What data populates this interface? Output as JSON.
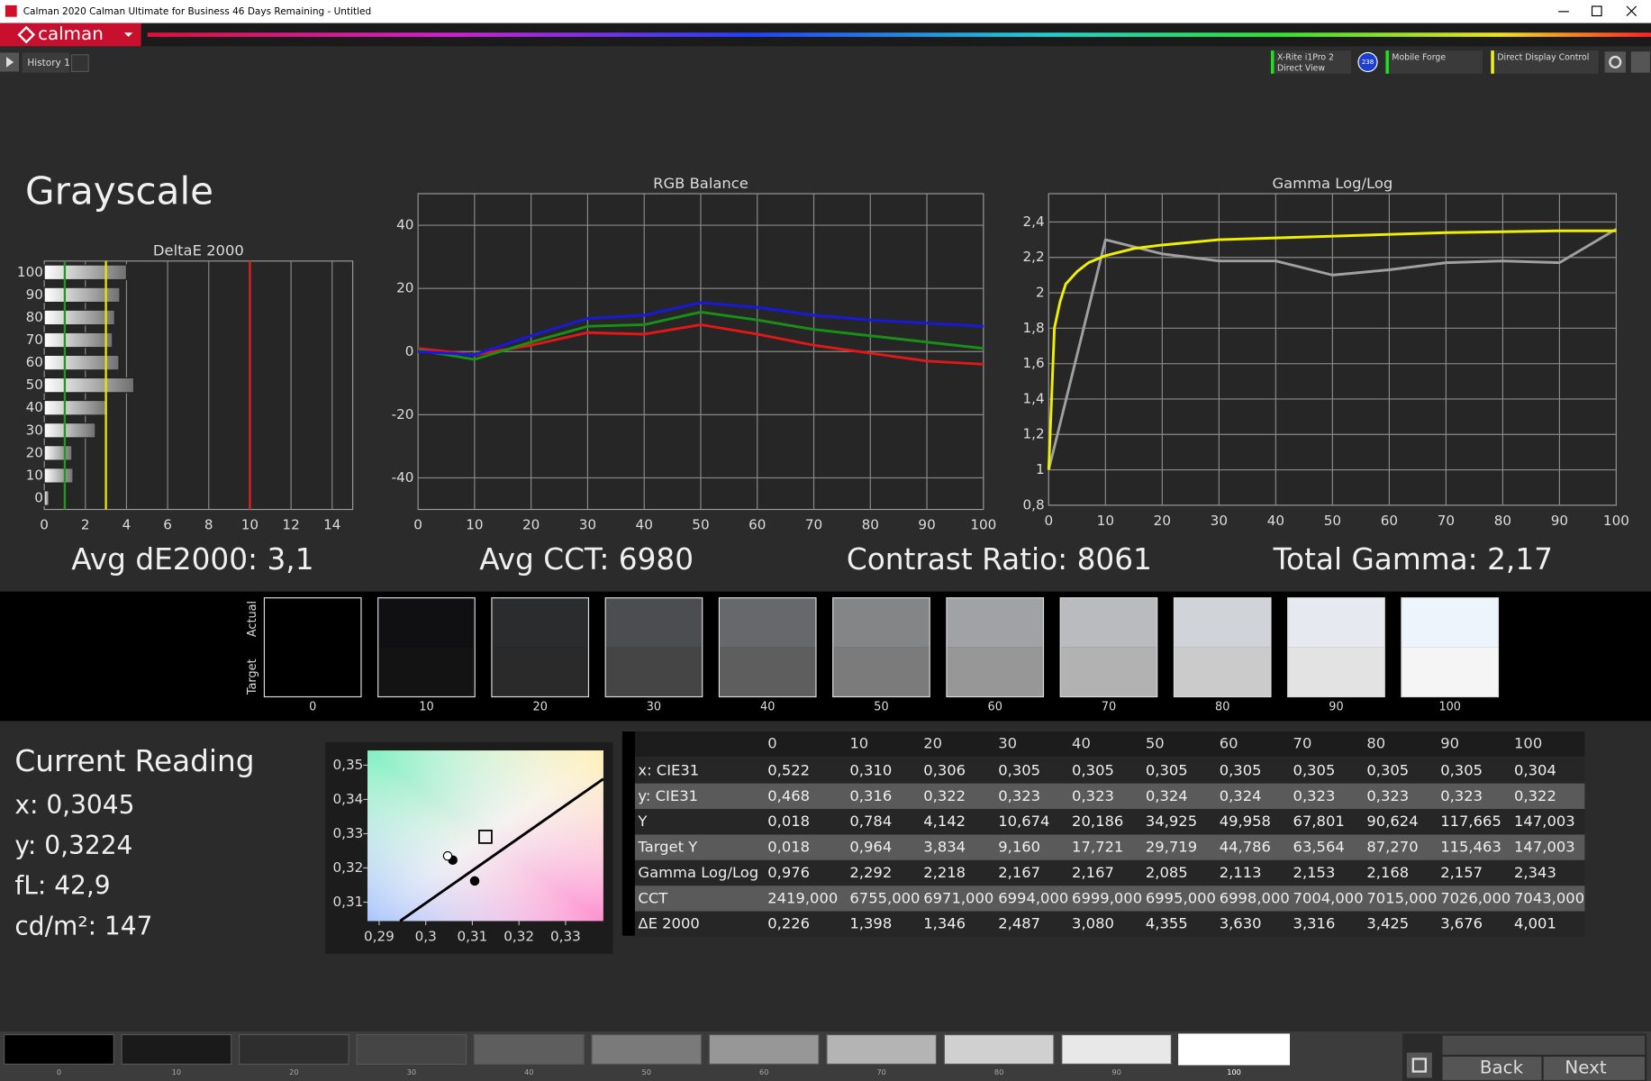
{
  "window": {
    "title": "Calman 2020 Calman Ultimate for Business 46 Days Remaining - Untitled"
  },
  "toolbar": {
    "logo": "calman",
    "tab": "History 1",
    "meter": [
      "X-Rite i1Pro 2",
      "Direct View"
    ],
    "meter_badge": "238",
    "source": "Mobile Forge",
    "display": "Direct Display Control"
  },
  "page_title": "Grayscale",
  "chart_data": [
    {
      "type": "bar",
      "horizontal": true,
      "title": "DeltaE 2000",
      "categories": [
        "100",
        "90",
        "80",
        "70",
        "60",
        "50",
        "40",
        "30",
        "20",
        "10",
        "0"
      ],
      "values": [
        4.001,
        3.676,
        3.425,
        3.316,
        3.63,
        4.355,
        3.08,
        2.487,
        1.346,
        1.398,
        0.226
      ],
      "xlim": [
        0,
        15
      ],
      "xticks": [
        0,
        2,
        4,
        6,
        8,
        10,
        12,
        14
      ],
      "grid": true,
      "reference_lines": [
        {
          "value": 1,
          "color": "#1f9a1f"
        },
        {
          "value": 3,
          "color": "#e6e600"
        },
        {
          "value": 10,
          "color": "#e02020"
        }
      ]
    },
    {
      "type": "line",
      "title": "RGB Balance",
      "x": [
        0,
        10,
        20,
        30,
        40,
        50,
        60,
        70,
        80,
        90,
        100
      ],
      "series": [
        {
          "color": "#e01818",
          "values": [
            1,
            -1,
            2,
            6,
            5.5,
            8.5,
            5.5,
            2,
            -0.5,
            -3,
            -4
          ]
        },
        {
          "color": "#189018",
          "values": [
            0.5,
            -2.5,
            3,
            8,
            8.5,
            12.5,
            10,
            7,
            5,
            3,
            1
          ]
        },
        {
          "color": "#1818e0",
          "values": [
            0,
            -1,
            5,
            10.5,
            11.5,
            15.5,
            14,
            11.5,
            10,
            9,
            8
          ]
        }
      ],
      "xlim": [
        0,
        100
      ],
      "xticks": [
        0,
        10,
        20,
        30,
        40,
        50,
        60,
        70,
        80,
        90,
        100
      ],
      "ylim": [
        -50,
        50
      ],
      "yticks": [
        -40,
        -20,
        0,
        20,
        40
      ],
      "grid": true
    },
    {
      "type": "line",
      "title": "Gamma Log/Log",
      "series": [
        {
          "color": "#a0a0a0",
          "x": [
            0,
            10,
            20,
            30,
            40,
            50,
            60,
            70,
            80,
            90,
            100
          ],
          "values": [
            1,
            2.3,
            2.22,
            2.18,
            2.18,
            2.1,
            2.13,
            2.17,
            2.18,
            2.17,
            2.36
          ]
        },
        {
          "color": "#f0f000",
          "x": [
            0,
            1,
            2,
            3,
            5,
            7,
            10,
            15,
            20,
            30,
            40,
            50,
            60,
            70,
            80,
            90,
            100
          ],
          "values": [
            1,
            1.8,
            1.95,
            2.05,
            2.12,
            2.17,
            2.21,
            2.25,
            2.27,
            2.3,
            2.31,
            2.32,
            2.33,
            2.34,
            2.345,
            2.35,
            2.35
          ]
        }
      ],
      "xlim": [
        0,
        100
      ],
      "xticks": [
        0,
        10,
        20,
        30,
        40,
        50,
        60,
        70,
        80,
        90,
        100
      ],
      "ylim": [
        0.8,
        2.56
      ],
      "yticks": [
        {
          "value": 0.8,
          "label": "0,8"
        },
        1,
        {
          "value": 1.2,
          "label": "1,2"
        },
        {
          "value": 1.4,
          "label": "1,4"
        },
        {
          "value": 1.6,
          "label": "1,6"
        },
        {
          "value": 1.8,
          "label": "1,8"
        },
        2,
        {
          "value": 2.2,
          "label": "2,2"
        },
        {
          "value": 2.4,
          "label": "2,4"
        }
      ],
      "grid": true
    },
    {
      "type": "scatter",
      "series": [
        {
          "marker": "square",
          "color": "#000000",
          "x": [
            0.3128
          ],
          "values": [
            0.3291
          ]
        },
        {
          "marker": "circle",
          "color": "#000000",
          "x": [
            0.3058,
            0.3105
          ],
          "values": [
            0.3223,
            0.3162
          ]
        },
        {
          "marker": "circle",
          "color": "#ffffff",
          "x": [
            0.3047
          ],
          "values": [
            0.3235
          ]
        }
      ],
      "xlim": [
        0.2875,
        0.3381
      ],
      "xticks": [
        {
          "value": 0.29,
          "label": "0,29"
        },
        {
          "value": 0.3,
          "label": "0,3"
        },
        {
          "value": 0.31,
          "label": "0,31"
        },
        {
          "value": 0.32,
          "label": "0,32"
        },
        {
          "value": 0.33,
          "label": "0,33"
        }
      ],
      "ylim": [
        0.3045,
        0.3543
      ],
      "yticks": [
        {
          "value": 0.31,
          "label": "0,31"
        },
        {
          "value": 0.32,
          "label": "0,32"
        },
        {
          "value": 0.33,
          "label": "0,33"
        },
        {
          "value": 0.34,
          "label": "0,34"
        },
        {
          "value": 0.35,
          "label": "0,35"
        }
      ],
      "grid": false
    }
  ],
  "summary": [
    "Avg dE2000: 3,1",
    "Avg CCT: 6980",
    "Contrast Ratio: 8061",
    "Total Gamma: 2,17"
  ],
  "swatches": {
    "actual_label": "Actual",
    "target_label": "Target",
    "items": [
      {
        "label": "0",
        "actual": "#000000",
        "target": "#000000"
      },
      {
        "label": "10",
        "actual": "#101012",
        "target": "#131313"
      },
      {
        "label": "20",
        "actual": "#2b2c2e",
        "target": "#2a2a2a"
      },
      {
        "label": "30",
        "actual": "#4c4d50",
        "target": "#454545"
      },
      {
        "label": "40",
        "actual": "#66686b",
        "target": "#5e5e5e"
      },
      {
        "label": "50",
        "actual": "#838587",
        "target": "#7b7b7b"
      },
      {
        "label": "60",
        "actual": "#a0a2a5",
        "target": "#979797"
      },
      {
        "label": "70",
        "actual": "#b9bbbe",
        "target": "#b2b2b2"
      },
      {
        "label": "80",
        "actual": "#d0d3d8",
        "target": "#cbcbcb"
      },
      {
        "label": "90",
        "actual": "#e6e9f0",
        "target": "#e3e3e3"
      },
      {
        "label": "100",
        "actual": "#eef4fc",
        "target": "#f5f5f5"
      }
    ]
  },
  "current_reading": {
    "title": "Current Reading",
    "lines": [
      "x: 0,3045",
      "y: 0,3224",
      "fL: 42,9",
      "cd/m²: 147"
    ]
  },
  "table": {
    "columns": [
      "0",
      "10",
      "20",
      "30",
      "40",
      "50",
      "60",
      "70",
      "80",
      "90",
      "100"
    ],
    "rows": [
      {
        "label": "x: CIE31",
        "cells": [
          "0,522",
          "0,310",
          "0,306",
          "0,305",
          "0,305",
          "0,305",
          "0,305",
          "0,305",
          "0,305",
          "0,305",
          "0,304"
        ]
      },
      {
        "label": "y: CIE31",
        "cells": [
          "0,468",
          "0,316",
          "0,322",
          "0,323",
          "0,323",
          "0,324",
          "0,324",
          "0,323",
          "0,323",
          "0,323",
          "0,322"
        ]
      },
      {
        "label": "Y",
        "cells": [
          "0,018",
          "0,784",
          "4,142",
          "10,674",
          "20,186",
          "34,925",
          "49,958",
          "67,801",
          "90,624",
          "117,665",
          "147,003"
        ]
      },
      {
        "label": "Target Y",
        "cells": [
          "0,018",
          "0,964",
          "3,834",
          "9,160",
          "17,721",
          "29,719",
          "44,786",
          "63,564",
          "87,270",
          "115,463",
          "147,003"
        ]
      },
      {
        "label": "Gamma Log/Log",
        "cells": [
          "0,976",
          "2,292",
          "2,218",
          "2,167",
          "2,167",
          "2,085",
          "2,113",
          "2,153",
          "2,168",
          "2,157",
          "2,343"
        ]
      },
      {
        "label": "CCT",
        "cells": [
          "2419,000",
          "6755,000",
          "6971,000",
          "6994,000",
          "6999,000",
          "6995,000",
          "6998,000",
          "7004,000",
          "7015,000",
          "7026,000",
          "7043,000"
        ]
      },
      {
        "label": "ΔE 2000",
        "cells": [
          "0,226",
          "1,398",
          "1,346",
          "2,487",
          "3,080",
          "4,355",
          "3,630",
          "3,316",
          "3,425",
          "3,676",
          "4,001"
        ]
      }
    ]
  },
  "footer": {
    "swatches": [
      {
        "label": "0",
        "color": "#000000"
      },
      {
        "label": "10",
        "color": "#1a1a1a"
      },
      {
        "label": "20",
        "color": "#2e2e2e"
      },
      {
        "label": "30",
        "color": "#454545"
      },
      {
        "label": "40",
        "color": "#5e5e5e"
      },
      {
        "label": "50",
        "color": "#7a7a7a"
      },
      {
        "label": "60",
        "color": "#979797"
      },
      {
        "label": "70",
        "color": "#b4b4b4"
      },
      {
        "label": "80",
        "color": "#d0d0d0"
      },
      {
        "label": "90",
        "color": "#e8e8e8"
      },
      {
        "label": "100",
        "color": "#ffffff"
      }
    ],
    "back": "Back",
    "next": "Next"
  }
}
